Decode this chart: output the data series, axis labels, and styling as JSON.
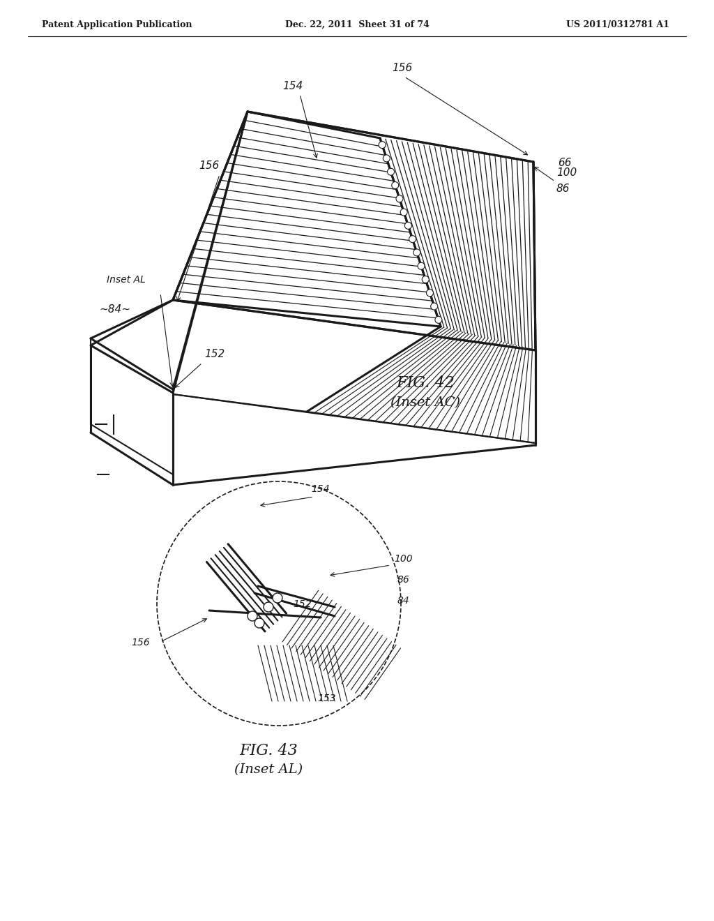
{
  "bg_color": "#ffffff",
  "line_color": "#1a1a1a",
  "header_left": "Patent Application Publication",
  "header_mid": "Dec. 22, 2011  Sheet 31 of 74",
  "header_right": "US 2011/0312781 A1",
  "fig42_caption": "FIG. 42",
  "fig42_sub": "(Inset AC)",
  "fig43_caption": "FIG. 43",
  "fig43_sub": "(Inset AL)",
  "labels": {
    "156_top": "156",
    "154": "154",
    "156_left": "156",
    "66": "66",
    "100": "100",
    "86": "86",
    "152": "152",
    "84": "~84~",
    "inset_al": "Inset AL",
    "154_b": "154",
    "100_b": "100",
    "86_b": "86",
    "84_b": "84",
    "152_b": "152",
    "153": "153",
    "156_b": "156"
  }
}
